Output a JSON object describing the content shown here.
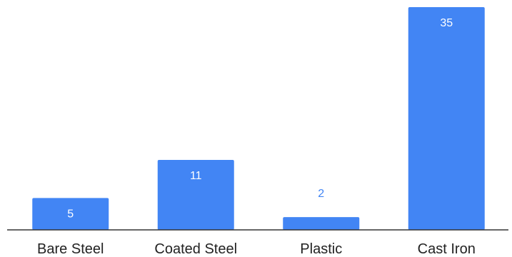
{
  "chart_data": {
    "type": "bar",
    "categories": [
      "Bare Steel",
      "Coated Steel",
      "Plastic",
      "Cast Iron"
    ],
    "values": [
      5,
      11,
      2,
      35
    ],
    "value_labels": [
      "5",
      "11",
      "2",
      "35"
    ],
    "title": "",
    "xlabel": "",
    "ylabel": "",
    "ylim": [
      0,
      35
    ],
    "grid": false,
    "legend": "none",
    "colors": {
      "bar": "#4285f4",
      "label_inside": "#ffffff",
      "label_outside": "#4285f4",
      "axis": "#333333",
      "category_text": "#222222"
    }
  }
}
